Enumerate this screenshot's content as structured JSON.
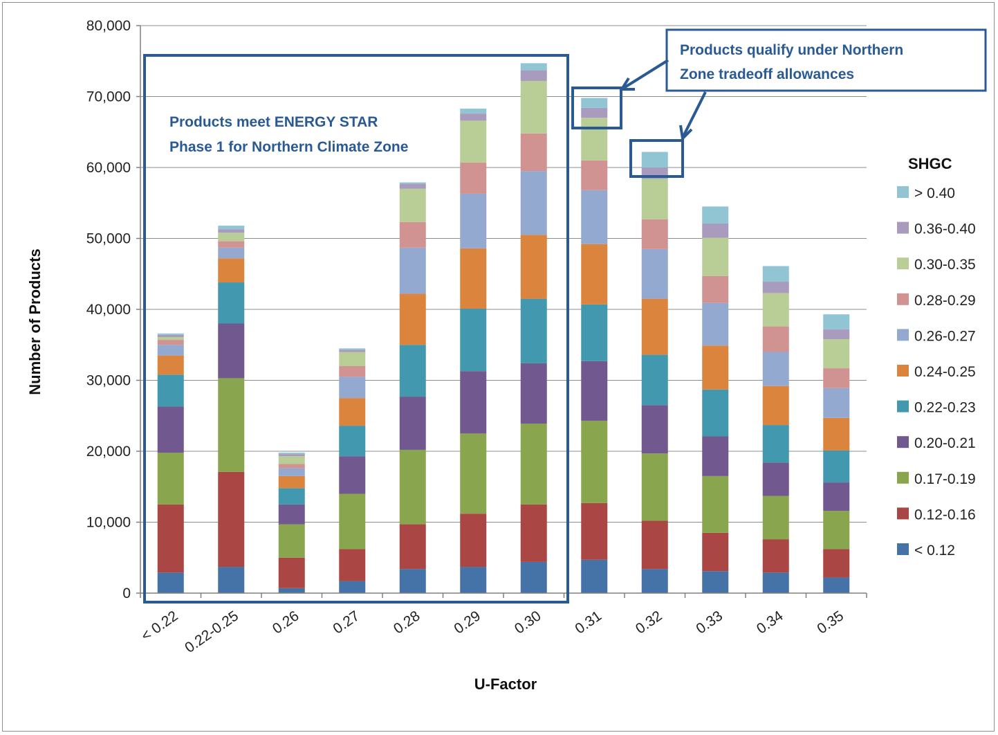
{
  "chart_data": {
    "type": "bar",
    "stacked": true,
    "xlabel": "U-Factor",
    "ylabel": "Number of Products",
    "ylim": [
      0,
      80000
    ],
    "yticks": [
      0,
      10000,
      20000,
      30000,
      40000,
      50000,
      60000,
      70000,
      80000
    ],
    "ytick_labels": [
      "0",
      "10,000",
      "20,000",
      "30,000",
      "40,000",
      "50,000",
      "60,000",
      "70,000",
      "80,000"
    ],
    "grid": true,
    "legend_title": "SHGC",
    "legend_position": "right",
    "categories": [
      "< 0.22",
      "0.22-0.25",
      "0.26",
      "0.27",
      "0.28",
      "0.29",
      "0.30",
      "0.31",
      "0.32",
      "0.33",
      "0.34",
      "0.35"
    ],
    "series": [
      {
        "name": "< 0.12",
        "color": "#4572a7",
        "values": [
          2900,
          3700,
          700,
          1700,
          3400,
          3700,
          4400,
          4700,
          3400,
          3100,
          2900,
          2200
        ]
      },
      {
        "name": "0.12-0.16",
        "color": "#aa4643",
        "values": [
          9600,
          13400,
          4300,
          4500,
          6300,
          7500,
          8100,
          8000,
          6800,
          5400,
          4700,
          4000
        ]
      },
      {
        "name": "0.17-0.19",
        "color": "#89a54e",
        "values": [
          7300,
          13200,
          4700,
          7800,
          10500,
          11300,
          11400,
          11600,
          9500,
          8000,
          6100,
          5400
        ]
      },
      {
        "name": "0.20-0.21",
        "color": "#71588f",
        "values": [
          6500,
          7700,
          2800,
          5300,
          7500,
          8800,
          8500,
          8400,
          6800,
          5600,
          4700,
          4000
        ]
      },
      {
        "name": "0.22-0.23",
        "color": "#4198af",
        "values": [
          4500,
          5800,
          2300,
          4300,
          7300,
          8800,
          9100,
          8000,
          7100,
          6600,
          5300,
          4500
        ]
      },
      {
        "name": "0.24-0.25",
        "color": "#db843d",
        "values": [
          2700,
          3400,
          1700,
          3900,
          7200,
          8500,
          9000,
          8500,
          7900,
          6200,
          5500,
          4600
        ]
      },
      {
        "name": "0.26-0.27",
        "color": "#93a9cf",
        "values": [
          1500,
          1500,
          1100,
          3000,
          6500,
          7700,
          9000,
          7600,
          7000,
          6000,
          4800,
          4200
        ]
      },
      {
        "name": "0.28-0.29",
        "color": "#d19392",
        "values": [
          700,
          900,
          600,
          1500,
          3600,
          4400,
          5300,
          4200,
          4200,
          3800,
          3600,
          2800
        ]
      },
      {
        "name": "0.30-0.35",
        "color": "#b9cd96",
        "values": [
          400,
          1200,
          1100,
          2000,
          4700,
          5900,
          7400,
          6000,
          5700,
          5400,
          4700,
          4100
        ]
      },
      {
        "name": "0.36-0.40",
        "color": "#a99bbd",
        "values": [
          300,
          500,
          300,
          300,
          700,
          1000,
          1500,
          1400,
          1600,
          2000,
          1600,
          1400
        ]
      },
      {
        "name": "> 0.40",
        "color": "#92c5d4",
        "values": [
          200,
          500,
          200,
          200,
          200,
          700,
          1000,
          1400,
          2200,
          2400,
          2200,
          2100
        ]
      }
    ],
    "annotations": [
      {
        "text_line1": "Products meet ENERGY STAR",
        "text_line2": "Phase 1 for Northern Climate Zone"
      },
      {
        "text_line1": "Products qualify under Northern",
        "text_line2": "Zone tradeoff allowances"
      }
    ]
  },
  "colors": {
    "annotation_border": "#2a5a94",
    "gridline": "#8c8c8c"
  }
}
